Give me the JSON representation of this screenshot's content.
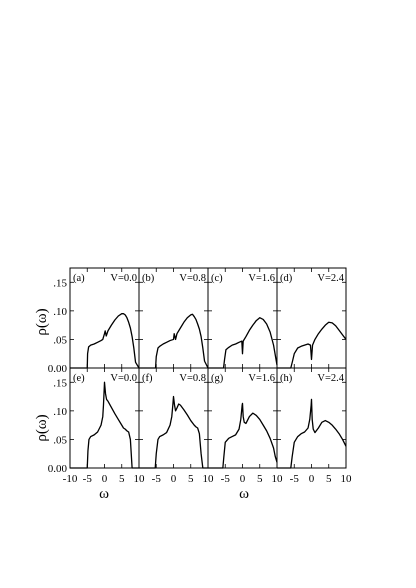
{
  "chart_data": {
    "type": "line",
    "layout": "2x4 grid",
    "ylabel": "ρ(ω)",
    "xlabel": "ω",
    "xlim": [
      -10,
      10
    ],
    "ylim": [
      0,
      0.175
    ],
    "x_ticks": [
      -10,
      -5,
      0,
      5,
      10
    ],
    "y_ticks": [
      0,
      0.05,
      0.1,
      0.15
    ],
    "y_tick_labels": [
      "0.00",
      ".05",
      ".10",
      ".15"
    ],
    "bottom_x_tick_labels": [
      "-10",
      "-5",
      "0",
      "5",
      "10"
    ],
    "bottom_x_tick_labels_inner": [
      "-5",
      "0",
      "5",
      "10"
    ],
    "grid": false,
    "legend": "none",
    "panels": [
      {
        "label": "(a)",
        "v_label": "V=0.0",
        "x": [
          -10,
          -5,
          -4.9,
          -4.6,
          -4,
          -3,
          -2,
          -1,
          -0.5,
          0,
          0.2,
          0.5,
          1,
          2,
          3,
          4,
          5,
          5.5,
          6,
          6.5,
          7,
          7.5,
          8,
          8.5,
          9,
          10
        ],
        "y": [
          0,
          0,
          0.025,
          0.037,
          0.04,
          0.042,
          0.045,
          0.048,
          0.05,
          0.06,
          0.065,
          0.056,
          0.065,
          0.075,
          0.084,
          0.091,
          0.095,
          0.095,
          0.093,
          0.088,
          0.08,
          0.07,
          0.055,
          0.035,
          0.01,
          0
        ]
      },
      {
        "label": "(b)",
        "v_label": "V=0.8",
        "x": [
          -10,
          -5.2,
          -5,
          -4.5,
          -4,
          -3,
          -2,
          -1,
          0,
          0.2,
          0.6,
          1,
          2,
          3,
          4,
          5,
          5.5,
          6,
          6.5,
          7,
          7.5,
          8,
          8.5,
          9,
          10
        ],
        "y": [
          0,
          0,
          0.02,
          0.035,
          0.038,
          0.042,
          0.045,
          0.048,
          0.05,
          0.06,
          0.05,
          0.06,
          0.07,
          0.08,
          0.088,
          0.093,
          0.094,
          0.09,
          0.085,
          0.077,
          0.068,
          0.055,
          0.035,
          0.012,
          0
        ]
      },
      {
        "label": "(c)",
        "v_label": "V=1.6",
        "x": [
          -10,
          -5.5,
          -5.2,
          -4.8,
          -4,
          -3,
          -2,
          -1,
          -0.2,
          0,
          0.2,
          1,
          2,
          3,
          4,
          5,
          6,
          7,
          8,
          9,
          10
        ],
        "y": [
          0,
          0,
          0.015,
          0.032,
          0.036,
          0.04,
          0.042,
          0.045,
          0.047,
          0.025,
          0.047,
          0.055,
          0.066,
          0.075,
          0.083,
          0.088,
          0.085,
          0.077,
          0.063,
          0.04,
          0.005
        ]
      },
      {
        "label": "(d)",
        "v_label": "V=2.4",
        "x": [
          -10,
          -6,
          -5.5,
          -5,
          -4,
          -3,
          -2,
          -1,
          -0.3,
          0,
          0.3,
          1,
          2,
          3,
          4,
          5,
          6,
          7,
          8,
          9,
          10
        ],
        "y": [
          0,
          0,
          0.012,
          0.025,
          0.035,
          0.038,
          0.04,
          0.042,
          0.04,
          0.015,
          0.04,
          0.05,
          0.06,
          0.068,
          0.075,
          0.08,
          0.079,
          0.074,
          0.066,
          0.058,
          0.05
        ]
      },
      {
        "label": "(e)",
        "v_label": "V=0.0",
        "x": [
          -10,
          -5,
          -4.8,
          -4.5,
          -4,
          -3,
          -2,
          -1,
          -0.5,
          -0.3,
          0,
          0.3,
          0.6,
          1,
          2,
          3,
          4,
          5,
          5.5,
          6,
          6.5,
          7,
          7.5,
          8,
          10
        ],
        "y": [
          0,
          0,
          0.03,
          0.05,
          0.055,
          0.058,
          0.063,
          0.075,
          0.09,
          0.11,
          0.15,
          0.13,
          0.12,
          0.117,
          0.106,
          0.095,
          0.085,
          0.075,
          0.07,
          0.068,
          0.065,
          0.063,
          0.05,
          0,
          0
        ]
      },
      {
        "label": "(f)",
        "v_label": "V=0.8",
        "x": [
          -10,
          -5.3,
          -5,
          -4.5,
          -4,
          -3,
          -2,
          -1,
          -0.5,
          -0.2,
          0,
          0.3,
          0.6,
          1,
          1.5,
          2,
          3,
          4,
          5,
          6,
          6.5,
          7,
          7.5,
          8,
          8.5,
          10
        ],
        "y": [
          0,
          0,
          0.025,
          0.05,
          0.055,
          0.058,
          0.062,
          0.075,
          0.09,
          0.11,
          0.125,
          0.11,
          0.1,
          0.105,
          0.112,
          0.11,
          0.102,
          0.093,
          0.083,
          0.075,
          0.072,
          0.07,
          0.06,
          0.025,
          0,
          0
        ]
      },
      {
        "label": "(g)",
        "v_label": "V=1.6",
        "x": [
          -10,
          -5.7,
          -5.4,
          -5,
          -4,
          -3,
          -2,
          -1,
          -0.5,
          -0.1,
          0,
          0.2,
          0.5,
          1,
          2,
          3,
          4,
          5,
          6,
          7,
          8,
          9,
          9.5,
          10
        ],
        "y": [
          0,
          0,
          0.02,
          0.045,
          0.052,
          0.055,
          0.058,
          0.068,
          0.085,
          0.11,
          0.113,
          0.09,
          0.08,
          0.078,
          0.09,
          0.096,
          0.092,
          0.085,
          0.075,
          0.065,
          0.052,
          0.035,
          0.02,
          0.01
        ]
      },
      {
        "label": "(h)",
        "v_label": "V=2.4",
        "x": [
          -10,
          -6,
          -5.6,
          -5,
          -4,
          -3,
          -2,
          -1,
          -0.5,
          -0.1,
          0,
          0.2,
          0.5,
          1,
          2,
          3,
          4,
          5,
          6,
          7,
          8,
          9,
          10
        ],
        "y": [
          0,
          0,
          0.02,
          0.045,
          0.055,
          0.06,
          0.063,
          0.07,
          0.085,
          0.11,
          0.12,
          0.085,
          0.068,
          0.062,
          0.07,
          0.08,
          0.083,
          0.08,
          0.075,
          0.068,
          0.06,
          0.05,
          0.038
        ]
      }
    ]
  }
}
